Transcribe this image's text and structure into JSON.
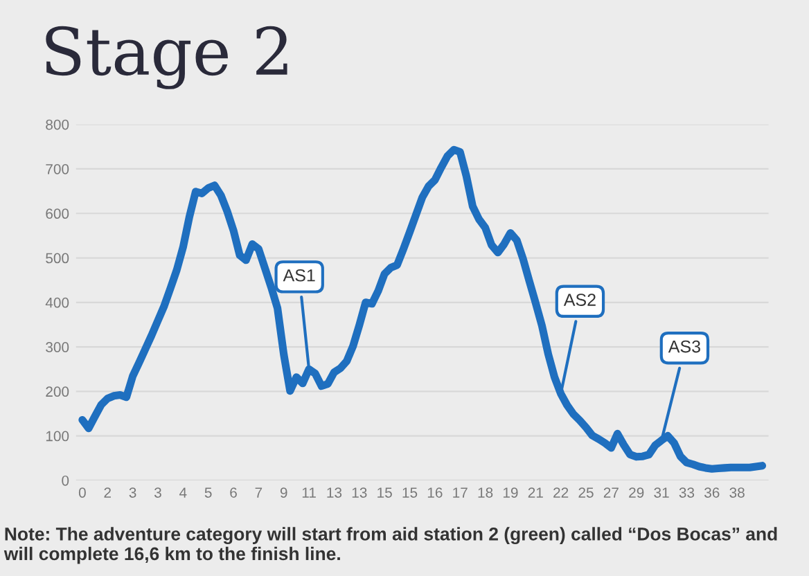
{
  "chart_data": {
    "type": "line",
    "title": "Stage 2",
    "categories": [
      "0",
      null,
      null,
      null,
      "2",
      null,
      null,
      null,
      "3",
      null,
      null,
      null,
      "3",
      null,
      null,
      null,
      "4",
      null,
      null,
      null,
      "5",
      null,
      null,
      null,
      "6",
      null,
      null,
      null,
      "7",
      null,
      null,
      null,
      "9",
      null,
      null,
      null,
      "11",
      null,
      null,
      null,
      "13",
      null,
      null,
      null,
      "13",
      null,
      null,
      null,
      "15",
      null,
      null,
      null,
      "15",
      null,
      null,
      null,
      "16",
      null,
      null,
      null,
      "17",
      null,
      null,
      null,
      "18",
      null,
      null,
      null,
      "19",
      null,
      null,
      null,
      "21",
      null,
      null,
      null,
      "22",
      null,
      null,
      null,
      "25",
      null,
      null,
      null,
      "27",
      null,
      null,
      null,
      "29",
      null,
      null,
      null,
      "31",
      null,
      null,
      null,
      "33",
      null,
      null,
      null,
      "36",
      null,
      null,
      null,
      "38",
      null,
      null,
      null,
      null
    ],
    "series": [
      {
        "color": "#1f6fbf",
        "values": [
          136,
          117,
          144,
          170,
          184,
          190,
          192,
          187,
          234,
          264,
          295,
          326,
          359,
          392,
          432,
          473,
          524,
          592,
          649,
          645,
          657,
          663,
          641,
          605,
          562,
          506,
          495,
          531,
          520,
          477,
          434,
          387,
          283,
          201,
          232,
          218,
          250,
          240,
          212,
          217,
          243,
          252,
          268,
          302,
          349,
          400,
          397,
          426,
          464,
          478,
          484,
          520,
          558,
          597,
          636,
          661,
          675,
          703,
          729,
          743,
          738,
          684,
          616,
          587,
          568,
          529,
          512,
          531,
          556,
          540,
          498,
          448,
          399,
          348,
          284,
          232,
          195,
          169,
          149,
          135,
          119,
          101,
          93,
          84,
          73,
          105,
          80,
          58,
          53,
          54,
          58,
          79,
          90,
          100,
          84,
          54,
          40,
          36,
          31,
          28,
          26,
          27,
          28,
          29,
          29,
          29,
          29,
          31,
          33
        ]
      }
    ],
    "ylim": [
      0,
      800
    ],
    "yticks": [
      0,
      100,
      200,
      300,
      400,
      500,
      600,
      700,
      800
    ],
    "grid": "y",
    "marker": "none",
    "line_style": "solid",
    "annotations": [
      {
        "text": "AS1",
        "x": "11",
        "y": 250
      },
      {
        "text": "AS2",
        "x": "22",
        "y": 195
      },
      {
        "text": "AS3",
        "x": "31",
        "y": 90
      },
      "Note: The adventure category will start from aid station 2 (green) called “Dos Bocas” and will complete 16,6 km to the finish line."
    ]
  }
}
